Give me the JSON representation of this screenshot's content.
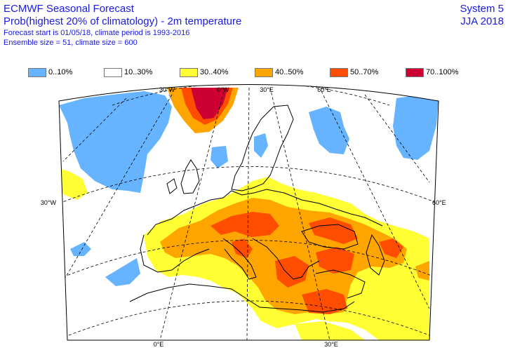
{
  "header": {
    "title": "ECMWF Seasonal Forecast",
    "subtitle": "Prob(highest 20% of climatology) - 2m temperature",
    "forecast_info": "Forecast start is 01/05/18, climate period is 1993-2016",
    "ensemble_info": "Ensemble size = 51, climate size = 600",
    "system": "System 5",
    "season": "JJA 2018"
  },
  "legend": [
    {
      "label": "0..10%",
      "color": "#66b3ff"
    },
    {
      "label": "10..30%",
      "color": "#ffffff"
    },
    {
      "label": "30..40%",
      "color": "#ffff33"
    },
    {
      "label": "40..50%",
      "color": "#ffa500"
    },
    {
      "label": "50..70%",
      "color": "#ff4d00"
    },
    {
      "label": "70..100%",
      "color": "#cc0033"
    }
  ],
  "map": {
    "top_ticks": [
      "30°W",
      "0°W",
      "30°E",
      "60°E"
    ],
    "bottom_ticks": [
      "0°E",
      "30°E"
    ],
    "left_ticks": [
      "30°W"
    ],
    "right_ticks": [
      "60°E"
    ],
    "frame_color": "#000000"
  }
}
